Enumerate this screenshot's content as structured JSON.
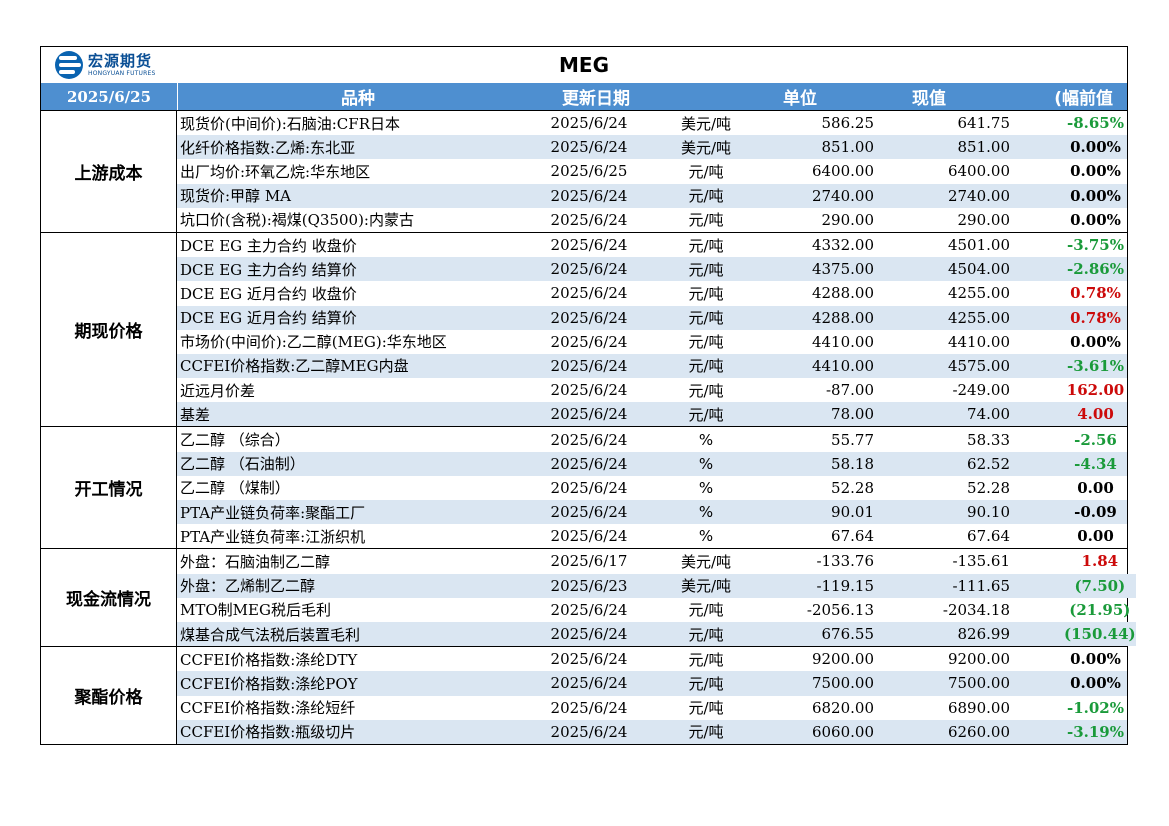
{
  "brand": {
    "name_cn": "宏源期货",
    "name_en": "HONGYUAN FUTURES"
  },
  "title": "MEG",
  "header": {
    "date": "2025/6/25",
    "variety": "品种",
    "update_date": "更新日期",
    "unit": "单位",
    "current": "现值",
    "change": "(幅前值"
  },
  "sections": [
    {
      "category": "上游成本",
      "rows": [
        {
          "variety": "现货价(中间价):石脑油:CFR日本",
          "date": "2025/6/24",
          "unit": "美元/吨",
          "prev": "586.25",
          "cur": "641.75",
          "chg": "-8.65%",
          "dir": "neg"
        },
        {
          "variety": "化纤价格指数:乙烯:东北亚",
          "date": "2025/6/24",
          "unit": "美元/吨",
          "prev": "851.00",
          "cur": "851.00",
          "chg": "0.00%",
          "dir": "zero"
        },
        {
          "variety": "出厂均价:环氧乙烷:华东地区",
          "date": "2025/6/25",
          "unit": "元/吨",
          "prev": "6400.00",
          "cur": "6400.00",
          "chg": "0.00%",
          "dir": "zero"
        },
        {
          "variety": "现货价:甲醇 MA",
          "date": "2025/6/24",
          "unit": "元/吨",
          "prev": "2740.00",
          "cur": "2740.00",
          "chg": "0.00%",
          "dir": "zero"
        },
        {
          "variety": "坑口价(含税):褐煤(Q3500):内蒙古",
          "date": "2025/6/24",
          "unit": "元/吨",
          "prev": "290.00",
          "cur": "290.00",
          "chg": "0.00%",
          "dir": "zero"
        }
      ]
    },
    {
      "category": "期现价格",
      "rows": [
        {
          "variety": "DCE EG 主力合约 收盘价",
          "date": "2025/6/24",
          "unit": "元/吨",
          "prev": "4332.00",
          "cur": "4501.00",
          "chg": "-3.75%",
          "dir": "neg"
        },
        {
          "variety": "DCE EG 主力合约 结算价",
          "date": "2025/6/24",
          "unit": "元/吨",
          "prev": "4375.00",
          "cur": "4504.00",
          "chg": "-2.86%",
          "dir": "neg"
        },
        {
          "variety": "DCE EG 近月合约 收盘价",
          "date": "2025/6/24",
          "unit": "元/吨",
          "prev": "4288.00",
          "cur": "4255.00",
          "chg": "0.78%",
          "dir": "pos"
        },
        {
          "variety": "DCE EG 近月合约 结算价",
          "date": "2025/6/24",
          "unit": "元/吨",
          "prev": "4288.00",
          "cur": "4255.00",
          "chg": "0.78%",
          "dir": "pos"
        },
        {
          "variety": "市场价(中间价):乙二醇(MEG):华东地区",
          "date": "2025/6/24",
          "unit": "元/吨",
          "prev": "4410.00",
          "cur": "4410.00",
          "chg": "0.00%",
          "dir": "zero"
        },
        {
          "variety": "CCFEI价格指数:乙二醇MEG内盘",
          "date": "2025/6/24",
          "unit": "元/吨",
          "prev": "4410.00",
          "cur": "4575.00",
          "chg": "-3.61%",
          "dir": "neg"
        },
        {
          "variety": "近远月价差",
          "date": "2025/6/24",
          "unit": "元/吨",
          "prev": "-87.00",
          "cur": "-249.00",
          "chg": "162.00",
          "dir": "pos"
        },
        {
          "variety": "基差",
          "date": "2025/6/24",
          "unit": "元/吨",
          "prev": "78.00",
          "cur": "74.00",
          "chg": "4.00",
          "dir": "pos"
        }
      ]
    },
    {
      "category": "开工情况",
      "rows": [
        {
          "variety": "乙二醇 （综合）",
          "date": "2025/6/24",
          "unit": "%",
          "prev": "55.77",
          "cur": "58.33",
          "chg": "-2.56",
          "dir": "neg"
        },
        {
          "variety": "乙二醇 （石油制）",
          "date": "2025/6/24",
          "unit": "%",
          "prev": "58.18",
          "cur": "62.52",
          "chg": "-4.34",
          "dir": "neg"
        },
        {
          "variety": "乙二醇 （煤制）",
          "date": "2025/6/24",
          "unit": "%",
          "prev": "52.28",
          "cur": "52.28",
          "chg": "0.00",
          "dir": "zero"
        },
        {
          "variety": "PTA产业链负荷率:聚酯工厂",
          "date": "2025/6/24",
          "unit": "%",
          "prev": "90.01",
          "cur": "90.10",
          "chg": "-0.09",
          "dir": "zero"
        },
        {
          "variety": "PTA产业链负荷率:江浙织机",
          "date": "2025/6/24",
          "unit": "%",
          "prev": "67.64",
          "cur": "67.64",
          "chg": "0.00",
          "dir": "zero"
        }
      ]
    },
    {
      "category": "现金流情况",
      "rows": [
        {
          "variety": "外盘：石脑油制乙二醇",
          "date": "2025/6/17",
          "unit": "美元/吨",
          "prev": "-133.76",
          "cur": "-135.61",
          "chg": "1.84",
          "dir": "pos"
        },
        {
          "variety": "外盘：乙烯制乙二醇",
          "date": "2025/6/23",
          "unit": "美元/吨",
          "prev": "-119.15",
          "cur": "-111.65",
          "chg": "(7.50)",
          "dir": "neg"
        },
        {
          "variety": "MTO制MEG税后毛利",
          "date": "2025/6/24",
          "unit": "元/吨",
          "prev": "-2056.13",
          "cur": "-2034.18",
          "chg": "(21.95)",
          "dir": "neg"
        },
        {
          "variety": "煤基合成气法税后装置毛利",
          "date": "2025/6/24",
          "unit": "元/吨",
          "prev": "676.55",
          "cur": "826.99",
          "chg": "(150.44)",
          "dir": "neg"
        }
      ]
    },
    {
      "category": "聚酯价格",
      "rows": [
        {
          "variety": "CCFEI价格指数:涤纶DTY",
          "date": "2025/6/24",
          "unit": "元/吨",
          "prev": "9200.00",
          "cur": "9200.00",
          "chg": "0.00%",
          "dir": "zero"
        },
        {
          "variety": "CCFEI价格指数:涤纶POY",
          "date": "2025/6/24",
          "unit": "元/吨",
          "prev": "7500.00",
          "cur": "7500.00",
          "chg": "0.00%",
          "dir": "zero"
        },
        {
          "variety": "CCFEI价格指数:涤纶短纤",
          "date": "2025/6/24",
          "unit": "元/吨",
          "prev": "6820.00",
          "cur": "6890.00",
          "chg": "-1.02%",
          "dir": "neg"
        },
        {
          "variety": "CCFEI价格指数:瓶级切片",
          "date": "2025/6/24",
          "unit": "元/吨",
          "prev": "6060.00",
          "cur": "6260.00",
          "chg": "-3.19%",
          "dir": "neg"
        }
      ]
    }
  ]
}
